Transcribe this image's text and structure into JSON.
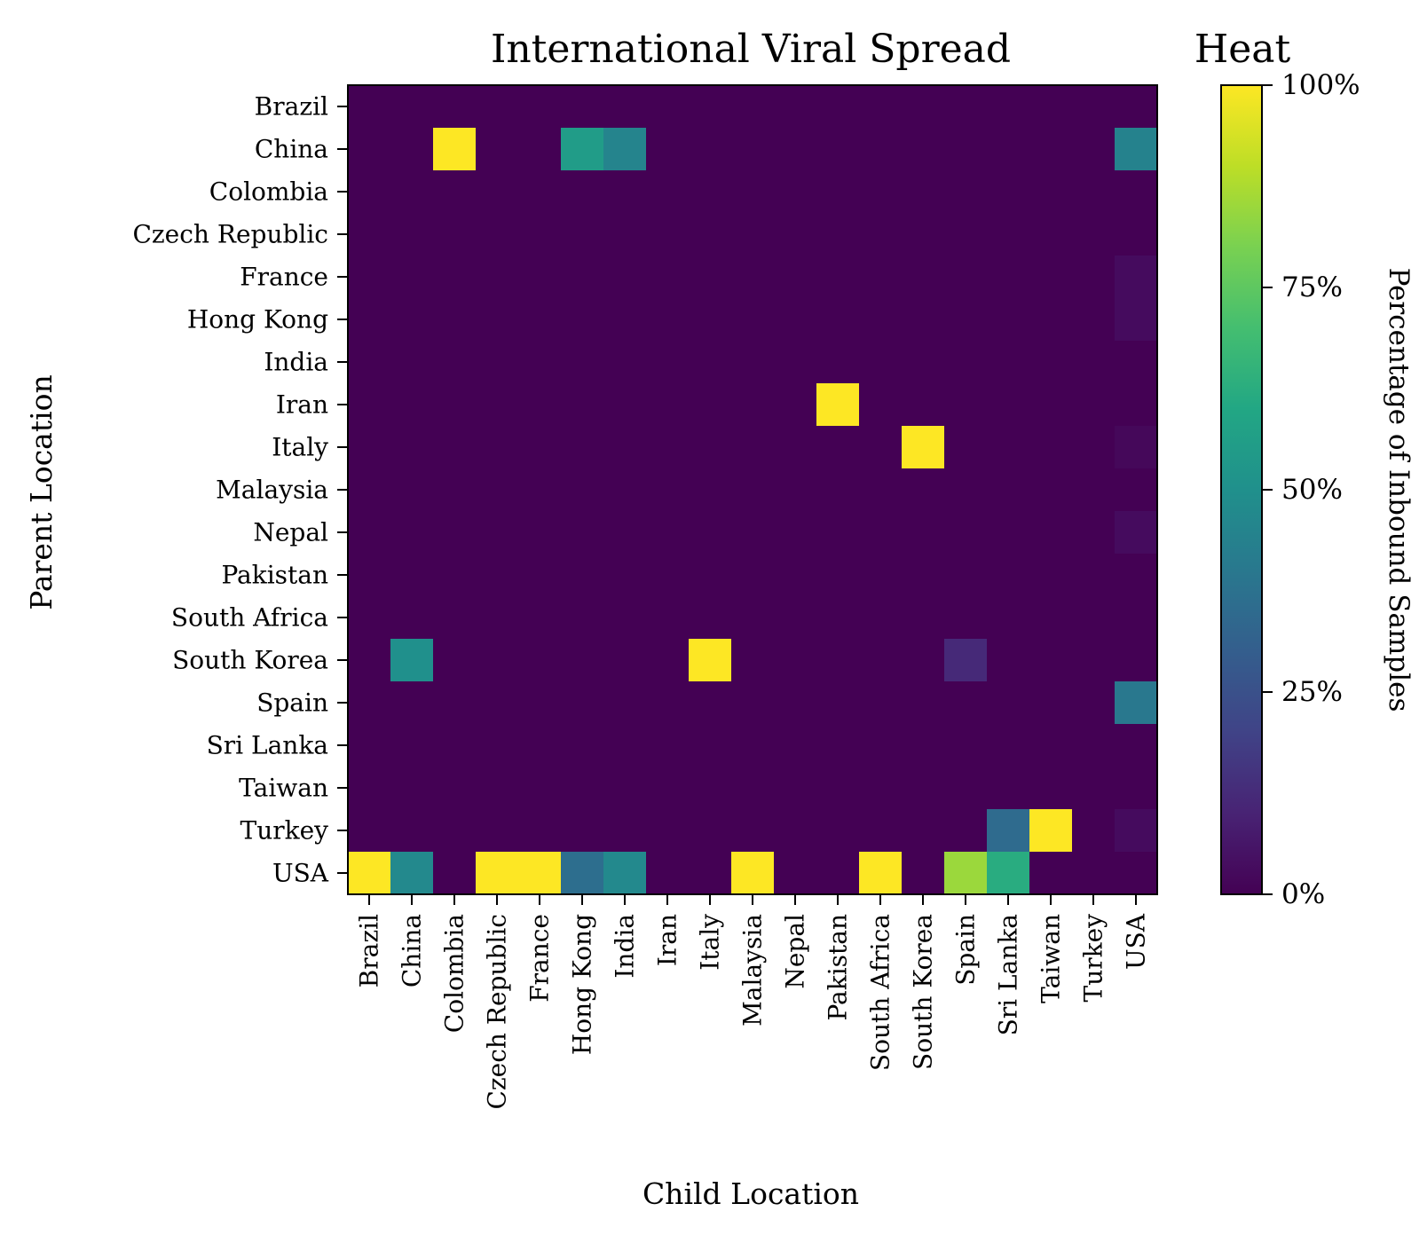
{
  "chart_data": {
    "type": "heatmap",
    "title": "International Viral Spread",
    "xlabel": "Child Location",
    "ylabel": "Parent Location",
    "x_categories": [
      "Brazil",
      "China",
      "Colombia",
      "Czech Republic",
      "France",
      "Hong Kong",
      "India",
      "Iran",
      "Italy",
      "Malaysia",
      "Nepal",
      "Pakistan",
      "South Africa",
      "South Korea",
      "Spain",
      "Sri Lanka",
      "Taiwan",
      "Turkey",
      "USA"
    ],
    "y_categories": [
      "Brazil",
      "China",
      "Colombia",
      "Czech Republic",
      "France",
      "Hong Kong",
      "India",
      "Iran",
      "Italy",
      "Malaysia",
      "Nepal",
      "Pakistan",
      "South Africa",
      "South Korea",
      "Spain",
      "Sri Lanka",
      "Taiwan",
      "Turkey",
      "USA"
    ],
    "values": [
      [
        0,
        0,
        0,
        0,
        0,
        0,
        0,
        0,
        0,
        0,
        0,
        0,
        0,
        0,
        0,
        0,
        0,
        0,
        0
      ],
      [
        0,
        0,
        100,
        0,
        0,
        55,
        45,
        0,
        0,
        0,
        0,
        0,
        0,
        0,
        0,
        0,
        0,
        0,
        44
      ],
      [
        0,
        0,
        0,
        0,
        0,
        0,
        0,
        0,
        0,
        0,
        0,
        0,
        0,
        0,
        0,
        0,
        0,
        0,
        0
      ],
      [
        0,
        0,
        0,
        0,
        0,
        0,
        0,
        0,
        0,
        0,
        0,
        0,
        0,
        0,
        0,
        0,
        0,
        0,
        0
      ],
      [
        0,
        0,
        0,
        0,
        0,
        0,
        0,
        0,
        0,
        0,
        0,
        0,
        0,
        0,
        0,
        0,
        0,
        0,
        3
      ],
      [
        0,
        0,
        0,
        0,
        0,
        0,
        0,
        0,
        0,
        0,
        0,
        0,
        0,
        0,
        0,
        0,
        0,
        0,
        3
      ],
      [
        0,
        0,
        0,
        0,
        0,
        0,
        0,
        0,
        0,
        0,
        0,
        0,
        0,
        0,
        0,
        0,
        0,
        0,
        0
      ],
      [
        0,
        0,
        0,
        0,
        0,
        0,
        0,
        0,
        0,
        0,
        0,
        100,
        0,
        0,
        0,
        0,
        0,
        0,
        0
      ],
      [
        0,
        0,
        0,
        0,
        0,
        0,
        0,
        0,
        0,
        0,
        0,
        0,
        0,
        100,
        0,
        0,
        0,
        0,
        2
      ],
      [
        0,
        0,
        0,
        0,
        0,
        0,
        0,
        0,
        0,
        0,
        0,
        0,
        0,
        0,
        0,
        0,
        0,
        0,
        0
      ],
      [
        0,
        0,
        0,
        0,
        0,
        0,
        0,
        0,
        0,
        0,
        0,
        0,
        0,
        0,
        0,
        0,
        0,
        0,
        3
      ],
      [
        0,
        0,
        0,
        0,
        0,
        0,
        0,
        0,
        0,
        0,
        0,
        0,
        0,
        0,
        0,
        0,
        0,
        0,
        0
      ],
      [
        0,
        0,
        0,
        0,
        0,
        0,
        0,
        0,
        0,
        0,
        0,
        0,
        0,
        0,
        0,
        0,
        0,
        0,
        0
      ],
      [
        0,
        50,
        0,
        0,
        0,
        0,
        0,
        0,
        100,
        0,
        0,
        0,
        0,
        0,
        12,
        0,
        0,
        0,
        0
      ],
      [
        0,
        0,
        0,
        0,
        0,
        0,
        0,
        0,
        0,
        0,
        0,
        0,
        0,
        0,
        0,
        0,
        0,
        0,
        40
      ],
      [
        0,
        0,
        0,
        0,
        0,
        0,
        0,
        0,
        0,
        0,
        0,
        0,
        0,
        0,
        0,
        0,
        0,
        0,
        0
      ],
      [
        0,
        0,
        0,
        0,
        0,
        0,
        0,
        0,
        0,
        0,
        0,
        0,
        0,
        0,
        0,
        0,
        0,
        0,
        0
      ],
      [
        0,
        0,
        0,
        0,
        0,
        0,
        0,
        0,
        0,
        0,
        0,
        0,
        0,
        0,
        0,
        35,
        100,
        0,
        3
      ],
      [
        100,
        47,
        0,
        100,
        100,
        36,
        47,
        0,
        0,
        100,
        0,
        0,
        100,
        0,
        85,
        62,
        0,
        0,
        0
      ]
    ],
    "colorscale": "viridis",
    "zlim": [
      0,
      100
    ],
    "colorbar": {
      "title": "Heat",
      "label": "Percentage of Inbound Samples",
      "ticks": [
        0,
        25,
        50,
        75,
        100
      ],
      "tick_labels": [
        "0%",
        "25%",
        "50%",
        "75%",
        "100%"
      ]
    }
  }
}
